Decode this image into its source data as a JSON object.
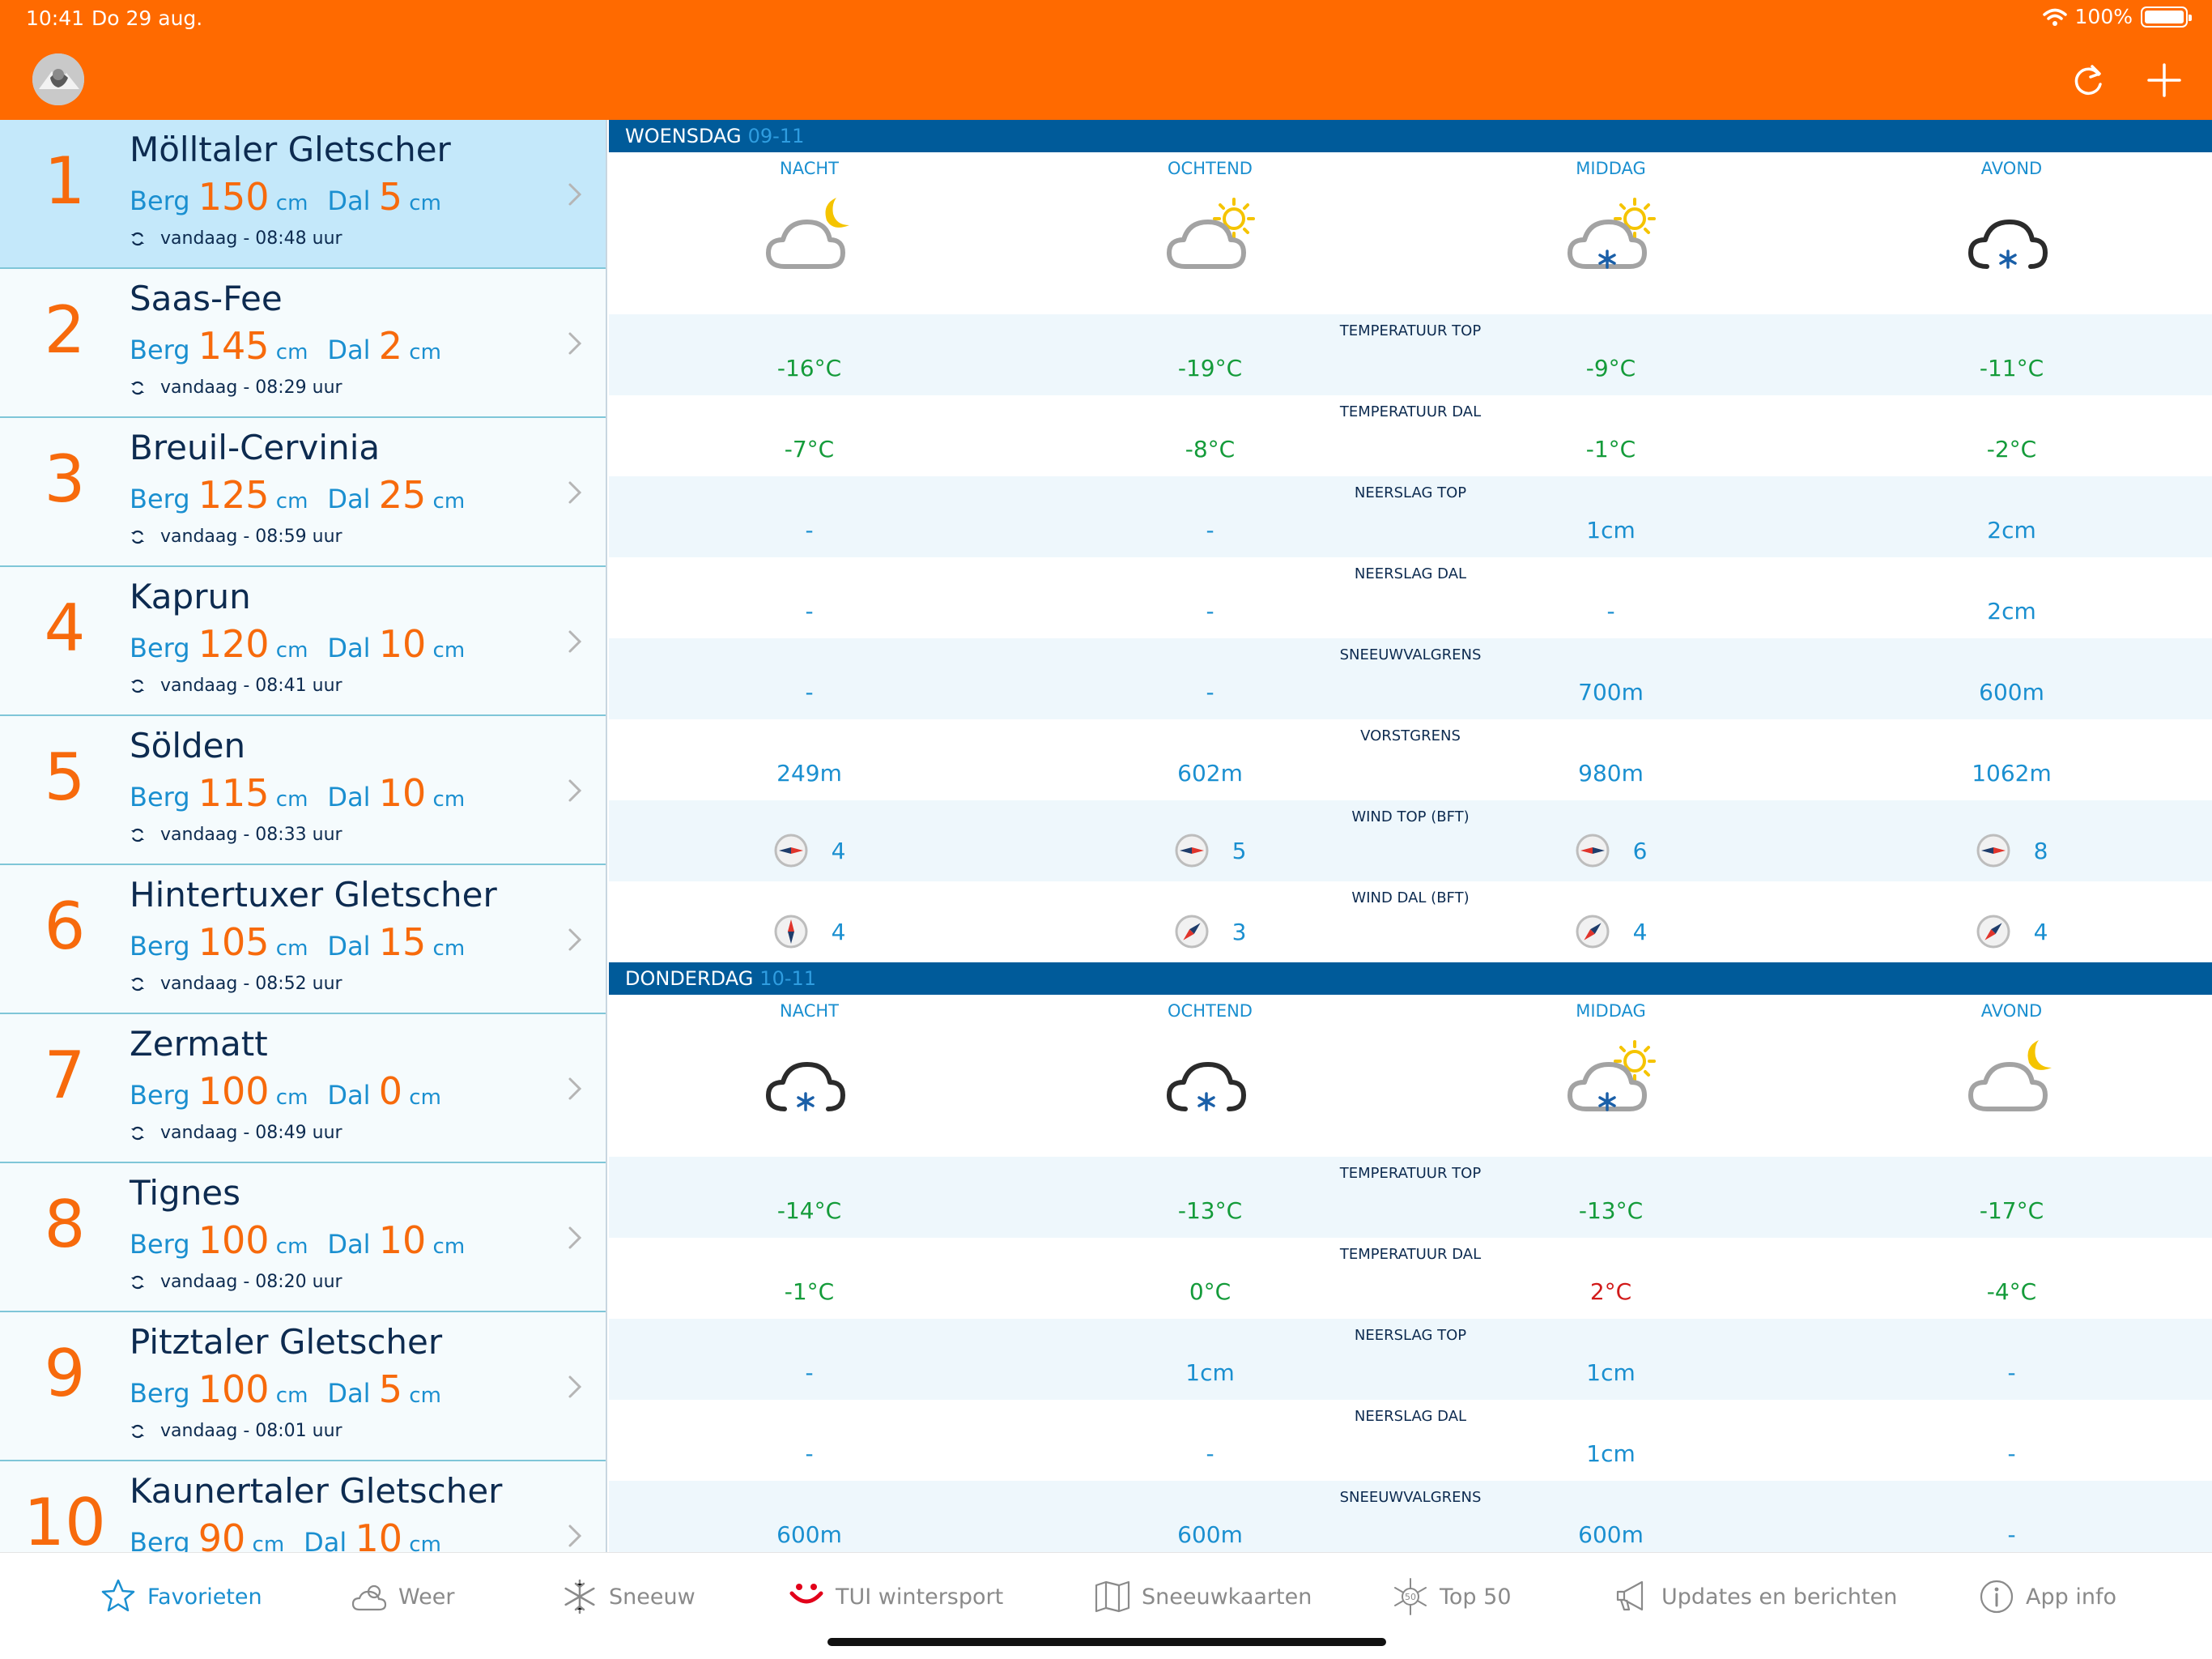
{
  "status": {
    "time": "10:41",
    "date": "Do 29 aug.",
    "battery": "100%"
  },
  "resorts": [
    {
      "rank": "1",
      "name": "Mölltaler Gletscher",
      "berg": "150",
      "dal": "5",
      "updated": "vandaag - 08:48 uur"
    },
    {
      "rank": "2",
      "name": "Saas-Fee",
      "berg": "145",
      "dal": "2",
      "updated": "vandaag - 08:29 uur"
    },
    {
      "rank": "3",
      "name": "Breuil-Cervinia",
      "berg": "125",
      "dal": "25",
      "updated": "vandaag - 08:59 uur"
    },
    {
      "rank": "4",
      "name": "Kaprun",
      "berg": "120",
      "dal": "10",
      "updated": "vandaag - 08:41 uur"
    },
    {
      "rank": "5",
      "name": "Sölden",
      "berg": "115",
      "dal": "10",
      "updated": "vandaag - 08:33 uur"
    },
    {
      "rank": "6",
      "name": "Hintertuxer Gletscher",
      "berg": "105",
      "dal": "15",
      "updated": "vandaag - 08:52 uur"
    },
    {
      "rank": "7",
      "name": "Zermatt",
      "berg": "100",
      "dal": "0",
      "updated": "vandaag - 08:49 uur"
    },
    {
      "rank": "8",
      "name": "Tignes",
      "berg": "100",
      "dal": "10",
      "updated": "vandaag - 08:20 uur"
    },
    {
      "rank": "9",
      "name": "Pitztaler Gletscher",
      "berg": "100",
      "dal": "5",
      "updated": "vandaag - 08:01 uur"
    },
    {
      "rank": "10",
      "name": "Kaunertaler Gletscher",
      "berg": "90",
      "dal": "10",
      "updated": ""
    }
  ],
  "labels": {
    "berg": "Berg",
    "dal": "Dal",
    "unit": "cm"
  },
  "periods": [
    "NACHT",
    "OCHTEND",
    "MIDDAG",
    "AVOND"
  ],
  "days": [
    {
      "name": "WOENSDAG",
      "date": "09-11",
      "icons": [
        "cloud-moon-icon",
        "cloud-sun-icon",
        "cloud-sun-snow-icon",
        "cloud-snow-icon"
      ],
      "rows": [
        {
          "label": "TEMPERATUUR TOP",
          "values": [
            "-16°C",
            "-19°C",
            "-9°C",
            "-11°C"
          ],
          "colors": [
            "green",
            "green",
            "green",
            "green"
          ]
        },
        {
          "label": "TEMPERATUUR DAL",
          "values": [
            "-7°C",
            "-8°C",
            "-1°C",
            "-2°C"
          ],
          "colors": [
            "green",
            "green",
            "green",
            "green"
          ]
        },
        {
          "label": "NEERSLAG TOP",
          "values": [
            "-",
            "-",
            "1cm",
            "2cm"
          ],
          "colors": [
            "blue",
            "blue",
            "blue",
            "blue"
          ]
        },
        {
          "label": "NEERSLAG DAL",
          "values": [
            "-",
            "-",
            "-",
            "2cm"
          ],
          "colors": [
            "blue",
            "blue",
            "blue",
            "blue"
          ]
        },
        {
          "label": "SNEEUWVALGRENS",
          "values": [
            "-",
            "-",
            "700m",
            "600m"
          ],
          "colors": [
            "blue",
            "blue",
            "blue",
            "blue"
          ]
        },
        {
          "label": "VORSTGRENS",
          "values": [
            "249m",
            "602m",
            "980m",
            "1062m"
          ],
          "colors": [
            "blue",
            "blue",
            "blue",
            "blue"
          ]
        }
      ],
      "wind": [
        {
          "label": "WIND TOP (BFT)",
          "values": [
            "4",
            "5",
            "6",
            "8"
          ],
          "directions": [
            "E",
            "E",
            "W",
            "E"
          ]
        },
        {
          "label": "WIND DAL (BFT)",
          "values": [
            "4",
            "3",
            "4",
            "4"
          ],
          "directions": [
            "N",
            "SW",
            "SW",
            "SW"
          ]
        }
      ]
    },
    {
      "name": "DONDERDAG",
      "date": "10-11",
      "icons": [
        "cloud-snow-icon",
        "cloud-snow-icon",
        "cloud-sun-snow-icon",
        "cloud-moon-icon"
      ],
      "rows": [
        {
          "label": "TEMPERATUUR TOP",
          "values": [
            "-14°C",
            "-13°C",
            "-13°C",
            "-17°C"
          ],
          "colors": [
            "green",
            "green",
            "green",
            "green"
          ]
        },
        {
          "label": "TEMPERATUUR DAL",
          "values": [
            "-1°C",
            "0°C",
            "2°C",
            "-4°C"
          ],
          "colors": [
            "green",
            "green",
            "red",
            "green"
          ]
        },
        {
          "label": "NEERSLAG TOP",
          "values": [
            "-",
            "1cm",
            "1cm",
            "-"
          ],
          "colors": [
            "blue",
            "blue",
            "blue",
            "blue"
          ]
        },
        {
          "label": "NEERSLAG DAL",
          "values": [
            "-",
            "-",
            "1cm",
            "-"
          ],
          "colors": [
            "blue",
            "blue",
            "blue",
            "blue"
          ]
        },
        {
          "label": "SNEEUWVALGRENS",
          "values": [
            "600m",
            "600m",
            "600m",
            "-"
          ],
          "colors": [
            "blue",
            "blue",
            "blue",
            "blue"
          ]
        }
      ],
      "wind": []
    }
  ],
  "tabs": [
    {
      "label": "Favorieten",
      "icon": "star-icon",
      "active": true
    },
    {
      "label": "Weer",
      "icon": "weather-icon",
      "active": false
    },
    {
      "label": "Sneeuw",
      "icon": "snowflake-icon",
      "active": false
    },
    {
      "label": "TUI wintersport",
      "icon": "tui-logo-icon",
      "active": false
    },
    {
      "label": "Sneeuwkaarten",
      "icon": "map-icon",
      "active": false
    },
    {
      "label": "Top 50",
      "icon": "top50-icon",
      "active": false
    },
    {
      "label": "Updates en berichten",
      "icon": "megaphone-icon",
      "active": false
    },
    {
      "label": "App info",
      "icon": "info-icon",
      "active": false
    }
  ]
}
